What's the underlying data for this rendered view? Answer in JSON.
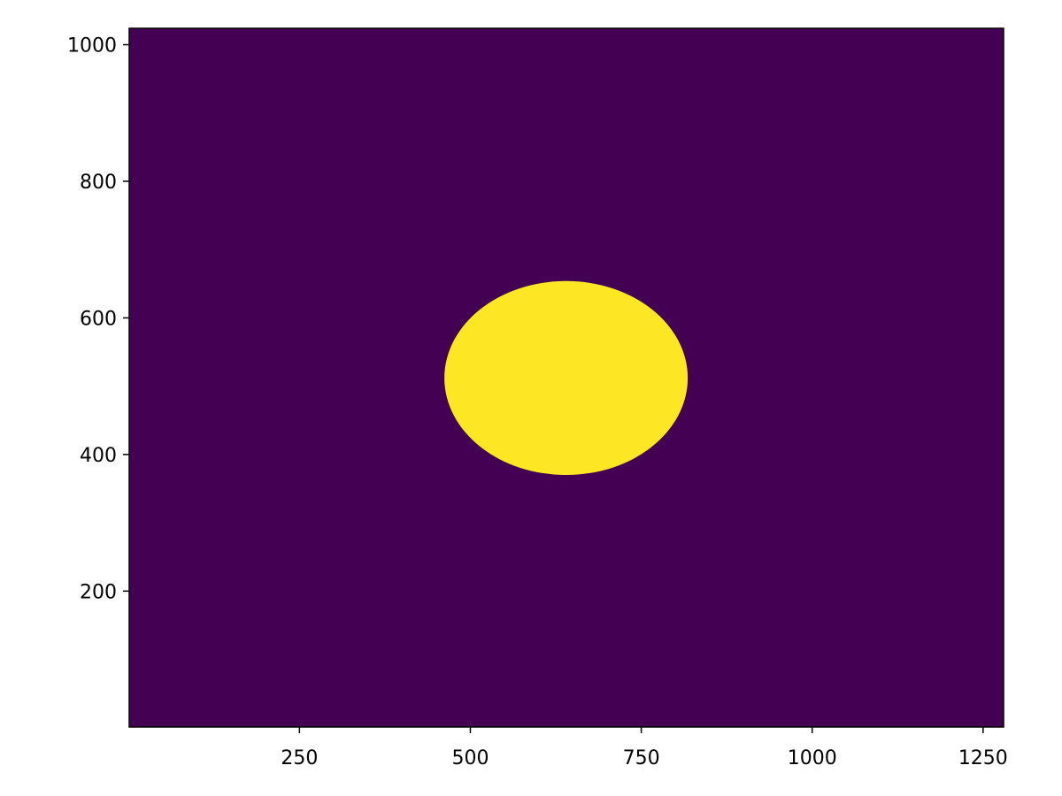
{
  "chart_data": {
    "type": "heatmap",
    "title": "",
    "xlabel": "",
    "ylabel": "",
    "xlim": [
      1,
      1280
    ],
    "ylim": [
      1,
      1024
    ],
    "grid": false,
    "x_ticks": [
      250,
      500,
      750,
      1000,
      1250
    ],
    "x_tick_labels": [
      "250",
      "500",
      "750",
      "1000",
      "1250"
    ],
    "y_ticks": [
      200,
      400,
      600,
      800,
      1000
    ],
    "y_tick_labels": [
      "200",
      "400",
      "600",
      "800",
      "1000"
    ],
    "image": {
      "description_values": "binary mask: 0 outside ellipse, 1 inside",
      "background_value": 0,
      "ellipse_value": 1,
      "ellipse": {
        "center": [
          640,
          512
        ],
        "x_radius": 178,
        "y_radius": 142
      }
    },
    "colors": {
      "low": "#440154",
      "high": "#fde725"
    }
  }
}
